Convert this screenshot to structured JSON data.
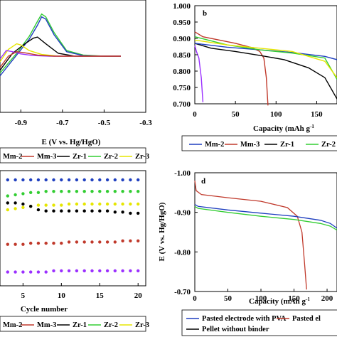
{
  "chart_data": [
    {
      "panel": "a",
      "type": "line",
      "xlabel": "E (V vs. Hg/HgO)",
      "ylabel": "",
      "xticks": [
        "-0.9",
        "-0.7",
        "-0.5",
        "-0.3"
      ],
      "xlim": [
        -1.0,
        -0.3
      ],
      "ylim": [
        -1.0,
        1.0
      ],
      "legend": [
        "Mm-2",
        "Mm-3",
        "Zr-1",
        "Zr-2",
        "Zr-3"
      ],
      "colors": [
        "#1f3fbf",
        "#c0392b",
        "#000000",
        "#32cd32",
        "#e6e600",
        "#9b30ff"
      ],
      "series": [
        {
          "color": "#32cd32",
          "x": [
            -1.0,
            -0.92,
            -0.86,
            -0.82,
            -0.8,
            -0.78,
            -0.74,
            -0.68,
            -0.6,
            -0.5,
            -0.42
          ],
          "y": [
            -0.3,
            0.05,
            0.35,
            0.62,
            0.75,
            0.7,
            0.42,
            0.1,
            0.02,
            0.0,
            0.0
          ]
        },
        {
          "color": "#1f3fbf",
          "x": [
            -1.0,
            -0.92,
            -0.86,
            -0.82,
            -0.8,
            -0.78,
            -0.74,
            -0.68,
            -0.6,
            -0.5,
            -0.42
          ],
          "y": [
            -0.35,
            0.02,
            0.3,
            0.55,
            0.7,
            0.66,
            0.38,
            0.08,
            0.01,
            0.0,
            0.0
          ]
        },
        {
          "color": "#000000",
          "x": [
            -1.0,
            -0.94,
            -0.88,
            -0.84,
            -0.82,
            -0.78,
            -0.72,
            -0.64,
            -0.55,
            -0.42
          ],
          "y": [
            -0.25,
            0.05,
            0.22,
            0.32,
            0.34,
            0.22,
            0.05,
            0.0,
            0.0,
            0.0
          ]
        },
        {
          "color": "#e6e600",
          "x": [
            -1.0,
            -0.96,
            -0.92,
            -0.9,
            -0.86,
            -0.8,
            -0.72,
            -0.6,
            -0.42
          ],
          "y": [
            -0.1,
            0.12,
            0.22,
            0.2,
            0.1,
            0.03,
            0.0,
            0.0,
            0.0
          ]
        },
        {
          "color": "#9b30ff",
          "x": [
            -1.0,
            -0.97,
            -0.94,
            -0.9,
            -0.84,
            -0.76,
            -0.6,
            -0.42
          ],
          "y": [
            -0.05,
            0.1,
            0.08,
            0.04,
            0.01,
            0.0,
            0.0,
            0.0
          ]
        },
        {
          "color": "#c0392b",
          "x": [
            -1.0,
            -0.96,
            -0.92,
            -0.88,
            -0.82,
            -0.74,
            -0.6,
            -0.42
          ],
          "y": [
            -0.2,
            0.0,
            0.08,
            0.06,
            0.02,
            0.0,
            0.0,
            0.0
          ]
        }
      ]
    },
    {
      "panel": "b",
      "type": "line",
      "xlabel": "Capacity (mAh g",
      "xlabel_sup": "-1",
      "xticks": [
        "0",
        "50",
        "100",
        "150"
      ],
      "yticks": [
        "1.000",
        "0.950",
        "0.900",
        "0.850",
        "0.800",
        "0.750",
        "0.700"
      ],
      "xlim": [
        0,
        175
      ],
      "ylim": [
        0.7,
        1.0
      ],
      "legend": [
        "Mm-2",
        "Mm-3",
        "Zr-1",
        "Zr-2"
      ],
      "colors": [
        "#1f3fbf",
        "#c0392b",
        "#000000",
        "#32cd32",
        "#e6e600",
        "#9b30ff"
      ],
      "series": [
        {
          "color": "#9b30ff",
          "x": [
            0,
            2,
            5,
            8,
            10
          ],
          "y": [
            0.878,
            0.86,
            0.84,
            0.78,
            0.705
          ]
        },
        {
          "color": "#c0392b",
          "x": [
            0,
            10,
            30,
            50,
            70,
            80,
            85,
            88,
            90
          ],
          "y": [
            0.92,
            0.905,
            0.895,
            0.885,
            0.872,
            0.86,
            0.84,
            0.78,
            0.695
          ]
        },
        {
          "color": "#000000",
          "x": [
            0,
            20,
            50,
            80,
            110,
            140,
            160,
            175
          ],
          "y": [
            0.885,
            0.87,
            0.86,
            0.848,
            0.835,
            0.81,
            0.78,
            0.715
          ]
        },
        {
          "color": "#1f3fbf",
          "x": [
            0,
            40,
            80,
            120,
            160,
            175
          ],
          "y": [
            0.885,
            0.873,
            0.865,
            0.857,
            0.845,
            0.835
          ]
        },
        {
          "color": "#32cd32",
          "x": [
            0,
            40,
            80,
            120,
            160,
            175
          ],
          "y": [
            0.905,
            0.88,
            0.865,
            0.855,
            0.84,
            0.775
          ]
        },
        {
          "color": "#e6e600",
          "x": [
            0,
            40,
            80,
            120,
            160,
            175
          ],
          "y": [
            0.895,
            0.88,
            0.87,
            0.86,
            0.83,
            0.78
          ]
        }
      ]
    },
    {
      "panel": "c",
      "type": "scatter",
      "xlabel": "Cycle number",
      "xticks": [
        "5",
        "10",
        "15",
        "20"
      ],
      "xlim": [
        2,
        21
      ],
      "ylim": [
        0,
        100
      ],
      "legend": [
        "Mm-2",
        "Mm-3",
        "Zr-1",
        "Zr-2",
        "Zr-3"
      ],
      "colors": [
        "#1f3fbf",
        "#c0392b",
        "#000000",
        "#32cd32",
        "#e6e600",
        "#9b30ff"
      ],
      "x": [
        3,
        4,
        5,
        6,
        7,
        8,
        9,
        10,
        11,
        12,
        13,
        14,
        15,
        16,
        17,
        18,
        19,
        20
      ],
      "series": [
        {
          "color": "#1f3fbf",
          "y": [
            92,
            92,
            92,
            92,
            92,
            92,
            92,
            92,
            92,
            92,
            92,
            92,
            92,
            92,
            92,
            92,
            92,
            92
          ]
        },
        {
          "color": "#32cd32",
          "y": [
            78,
            79,
            80,
            81,
            81,
            82,
            82,
            82,
            82,
            82,
            82,
            82,
            82,
            82,
            82,
            82,
            82,
            82
          ]
        },
        {
          "color": "#e6e600",
          "y": [
            66,
            67,
            68,
            69,
            70,
            70,
            70,
            70,
            71,
            71,
            71,
            71,
            71,
            71,
            71,
            71,
            71,
            71
          ]
        },
        {
          "color": "#000000",
          "y": [
            72,
            72,
            71,
            69,
            66,
            65,
            65,
            65,
            65,
            65,
            65,
            65,
            65,
            65,
            64,
            64,
            63,
            63
          ]
        },
        {
          "color": "#c0392b",
          "y": [
            36,
            36,
            36,
            37,
            37,
            37,
            37,
            37,
            38,
            38,
            38,
            38,
            38,
            38,
            38,
            39,
            39,
            39
          ]
        },
        {
          "color": "#9b30ff",
          "y": [
            12,
            12,
            12,
            12,
            12,
            12,
            13,
            13,
            13,
            13,
            13,
            13,
            13,
            13,
            13,
            13,
            13,
            13
          ]
        }
      ]
    },
    {
      "panel": "d",
      "type": "line",
      "xlabel": "Capacity (mAh g",
      "xlabel_sup": "-1",
      "ylabel": "E (V vs. Hg/HgO)",
      "xticks": [
        "0",
        "50",
        "100",
        "150",
        "200"
      ],
      "yticks": [
        "-1.00",
        "-0.90",
        "-0.80",
        "-0.70"
      ],
      "xlim": [
        0,
        215
      ],
      "ylim": [
        -1.0,
        -0.7
      ],
      "legend": [
        "Pasted electrode with PVA",
        "Pasted el",
        "Pellet without binder"
      ],
      "colors": [
        "#1f3fbf",
        "#c0392b",
        "#000000",
        "#32cd32",
        "#e6e600",
        "#9b30ff"
      ],
      "series": [
        {
          "color": "#c0392b",
          "x": [
            0,
            2,
            10,
            50,
            100,
            140,
            155,
            162,
            166,
            169
          ],
          "y": [
            -0.98,
            -0.955,
            -0.945,
            -0.937,
            -0.928,
            -0.912,
            -0.89,
            -0.85,
            -0.77,
            -0.705
          ]
        },
        {
          "color": "#1f3fbf",
          "x": [
            0,
            5,
            50,
            100,
            150,
            190,
            205,
            215
          ],
          "y": [
            -0.92,
            -0.915,
            -0.906,
            -0.898,
            -0.89,
            -0.88,
            -0.872,
            -0.86
          ]
        },
        {
          "color": "#32cd32",
          "x": [
            0,
            5,
            50,
            100,
            150,
            190,
            205,
            215
          ],
          "y": [
            -0.915,
            -0.91,
            -0.9,
            -0.89,
            -0.882,
            -0.872,
            -0.865,
            -0.855
          ]
        }
      ]
    }
  ],
  "panel_labels": {
    "b": "b",
    "d": "d"
  }
}
